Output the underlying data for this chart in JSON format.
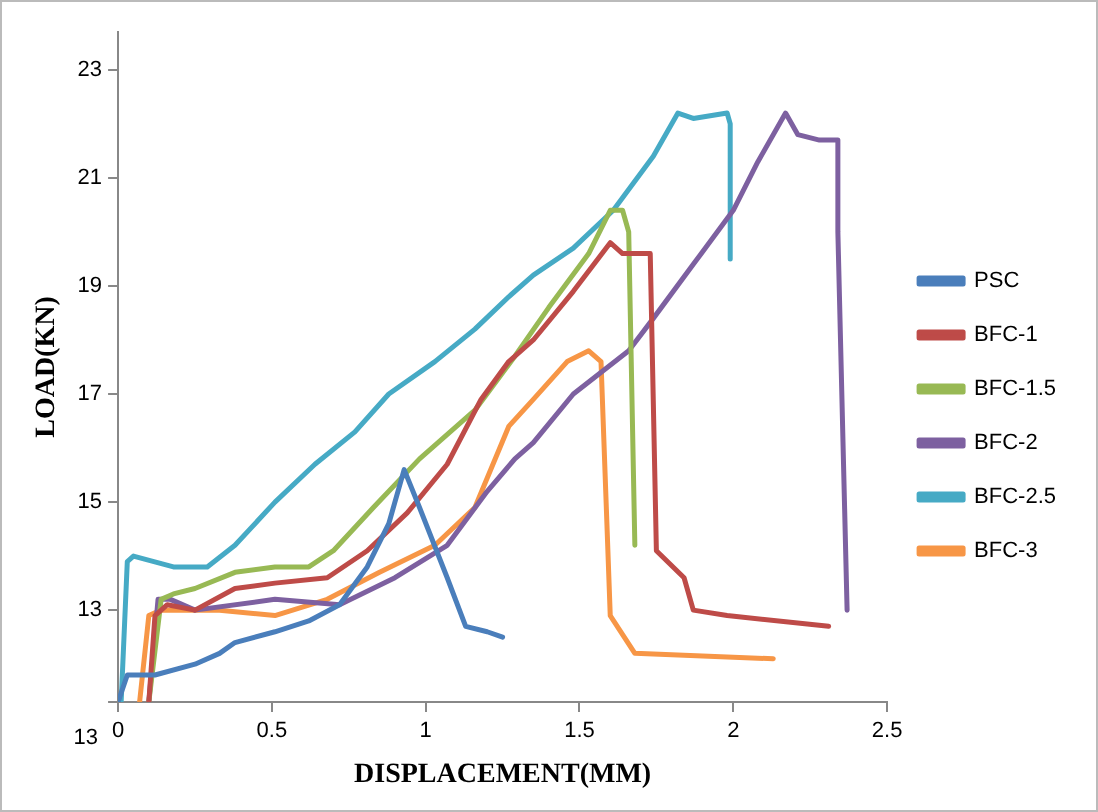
{
  "chart_data": {
    "type": "line",
    "xlabel": "DISPLACEMENT(MM)",
    "ylabel": "LOAD(KN)",
    "xlim": [
      0,
      2.5
    ],
    "xticks": [
      0,
      0.5,
      1,
      1.5,
      2,
      2.5
    ],
    "ylim": [
      11.3,
      23.7
    ],
    "yticks": [
      {
        "value": 11.3,
        "label": null
      },
      13,
      15,
      17,
      19,
      21,
      23
    ],
    "annotations": [
      "13"
    ],
    "grid": false,
    "legend": "right",
    "marker": "none",
    "line_style": "solid",
    "series": [
      {
        "name": "PSC",
        "color": "#4a7ebb",
        "x": [
          0,
          0.03,
          0.12,
          0.25,
          0.33,
          0.38,
          0.51,
          0.62,
          0.72,
          0.81,
          0.88,
          0.93,
          0.98,
          1.07,
          1.13,
          1.2,
          1.25
        ],
        "values": [
          11.3,
          11.8,
          11.8,
          12.0,
          12.2,
          12.4,
          12.6,
          12.8,
          13.1,
          13.8,
          14.6,
          15.6,
          14.9,
          13.6,
          12.7,
          12.6,
          12.5
        ]
      },
      {
        "name": "BFC-1",
        "color": "#be4b48",
        "x": [
          0.1,
          0.12,
          0.16,
          0.25,
          0.38,
          0.51,
          0.68,
          0.81,
          0.94,
          1.07,
          1.18,
          1.27,
          1.35,
          1.48,
          1.6,
          1.64,
          1.73,
          1.75,
          1.84,
          1.87,
          1.98,
          2.31
        ],
        "values": [
          11.3,
          12.9,
          13.1,
          13.0,
          13.4,
          13.5,
          13.6,
          14.1,
          14.8,
          15.7,
          16.9,
          17.6,
          18.0,
          18.9,
          19.8,
          19.6,
          19.6,
          14.1,
          13.6,
          13.0,
          12.9,
          12.7
        ]
      },
      {
        "name": "BFC-1.5",
        "color": "#98b954",
        "x": [
          0.1,
          0.14,
          0.18,
          0.25,
          0.38,
          0.51,
          0.62,
          0.7,
          0.83,
          0.98,
          1.16,
          1.29,
          1.4,
          1.53,
          1.6,
          1.64,
          1.66,
          1.68
        ],
        "values": [
          11.3,
          13.2,
          13.3,
          13.4,
          13.7,
          13.8,
          13.8,
          14.1,
          14.9,
          15.8,
          16.7,
          17.7,
          18.6,
          19.6,
          20.4,
          20.4,
          20.0,
          14.2
        ]
      },
      {
        "name": "BFC-2",
        "color": "#7d60a0",
        "x": [
          0.1,
          0.13,
          0.17,
          0.25,
          0.51,
          0.72,
          0.9,
          1.07,
          1.2,
          1.29,
          1.35,
          1.48,
          1.66,
          1.74,
          1.87,
          2.0,
          2.08,
          2.17,
          2.21,
          2.28,
          2.34,
          2.34,
          2.37
        ],
        "values": [
          11.3,
          13.2,
          13.2,
          13.0,
          13.2,
          13.1,
          13.6,
          14.2,
          15.2,
          15.8,
          16.1,
          17.0,
          17.8,
          18.4,
          19.4,
          20.4,
          21.3,
          22.2,
          21.8,
          21.7,
          21.7,
          20.0,
          13.0
        ]
      },
      {
        "name": "BFC-2.5",
        "color": "#46aac5",
        "x": [
          0.01,
          0.03,
          0.05,
          0.18,
          0.29,
          0.38,
          0.51,
          0.64,
          0.77,
          0.88,
          1.03,
          1.16,
          1.27,
          1.35,
          1.48,
          1.61,
          1.74,
          1.82,
          1.87,
          1.98,
          1.99,
          1.99
        ],
        "values": [
          11.3,
          13.9,
          14.0,
          13.8,
          13.8,
          14.2,
          15.0,
          15.7,
          16.3,
          17.0,
          17.6,
          18.2,
          18.8,
          19.2,
          19.7,
          20.4,
          21.4,
          22.2,
          22.1,
          22.2,
          22.0,
          19.5
        ]
      },
      {
        "name": "BFC-3",
        "color": "#f79646",
        "x": [
          0.07,
          0.1,
          0.14,
          0.33,
          0.51,
          0.68,
          0.85,
          1.03,
          1.16,
          1.27,
          1.35,
          1.46,
          1.53,
          1.57,
          1.6,
          1.68,
          2.13
        ],
        "values": [
          11.3,
          12.9,
          13.0,
          13.0,
          12.9,
          13.2,
          13.7,
          14.2,
          14.9,
          16.4,
          16.9,
          17.6,
          17.8,
          17.6,
          12.9,
          12.2,
          12.1
        ]
      }
    ]
  }
}
